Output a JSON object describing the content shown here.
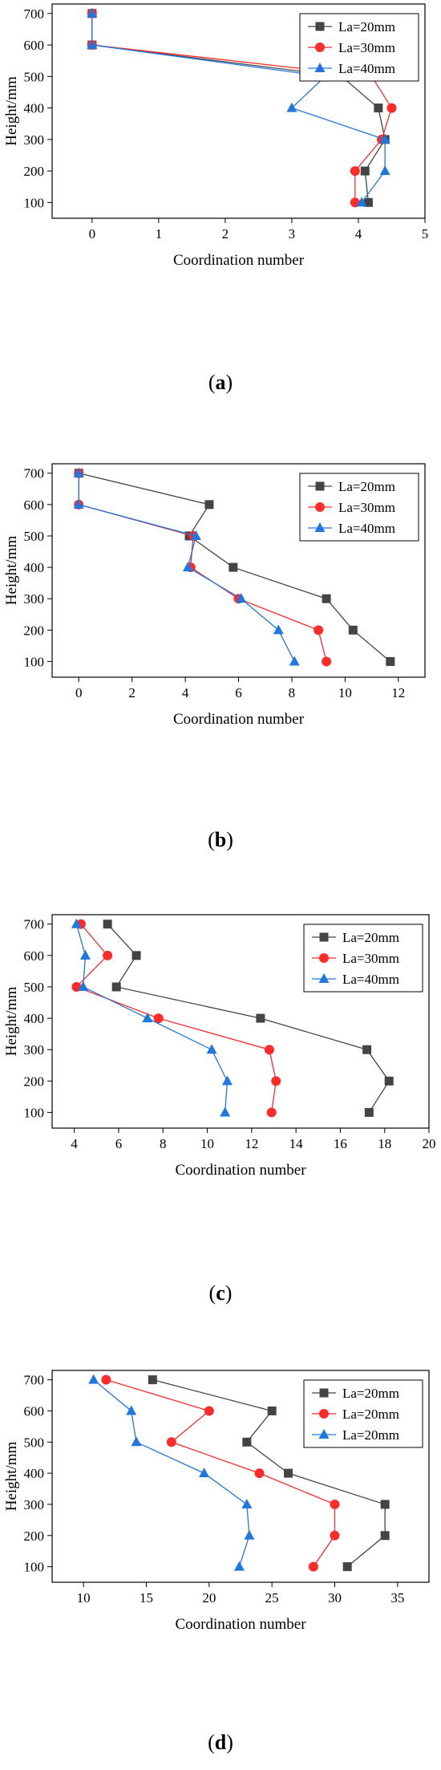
{
  "chart_data": [
    {
      "type": "line",
      "panel_label": "(a)",
      "xlabel": "Coordination number",
      "ylabel": "Height/mm",
      "xlim": [
        -0.6,
        5
      ],
      "ylim": [
        50,
        730
      ],
      "xticks": [
        0,
        1,
        2,
        3,
        4,
        5
      ],
      "yticks": [
        100,
        200,
        300,
        400,
        500,
        600,
        700
      ],
      "legend_position": "top-right",
      "grid": false,
      "series": [
        {
          "name": "La=20mm",
          "color": "#444444",
          "marker": "square",
          "x": [
            0,
            0,
            3.75,
            4.3,
            4.4,
            4.1,
            4.15
          ],
          "y": [
            700,
            600,
            500,
            400,
            300,
            200,
            100
          ]
        },
        {
          "name": "La=30mm",
          "color": "#ff2a2a",
          "marker": "circle",
          "x": [
            0,
            0,
            4.2,
            4.5,
            4.35,
            3.95,
            3.95
          ],
          "y": [
            700,
            600,
            500,
            400,
            300,
            200,
            100
          ]
        },
        {
          "name": "La=40mm",
          "color": "#1f77e0",
          "marker": "triangle",
          "x": [
            0,
            0,
            3.5,
            3.0,
            4.4,
            4.4,
            4.05
          ],
          "y": [
            700,
            600,
            500,
            400,
            300,
            200,
            100
          ]
        }
      ]
    },
    {
      "type": "line",
      "panel_label": "(b)",
      "xlabel": "Coordination number",
      "ylabel": "Height/mm",
      "xlim": [
        -1,
        13
      ],
      "ylim": [
        50,
        730
      ],
      "xticks": [
        0,
        2,
        4,
        6,
        8,
        10,
        12
      ],
      "yticks": [
        100,
        200,
        300,
        400,
        500,
        600,
        700
      ],
      "legend_position": "top-right",
      "grid": false,
      "series": [
        {
          "name": "La=20mm",
          "color": "#444444",
          "marker": "square",
          "x": [
            0,
            4.9,
            4.15,
            5.8,
            9.3,
            10.3,
            11.7
          ],
          "y": [
            700,
            600,
            500,
            400,
            300,
            200,
            100
          ]
        },
        {
          "name": "La=30mm",
          "color": "#ff2a2a",
          "marker": "circle",
          "x": [
            0,
            0,
            4.3,
            4.2,
            6.0,
            9.0,
            9.3
          ],
          "y": [
            700,
            600,
            500,
            400,
            300,
            200,
            100
          ]
        },
        {
          "name": "La=40mm",
          "color": "#1f77e0",
          "marker": "triangle",
          "x": [
            0,
            0,
            4.4,
            4.1,
            6.1,
            7.5,
            8.1
          ],
          "y": [
            700,
            600,
            500,
            400,
            300,
            200,
            100
          ]
        }
      ]
    },
    {
      "type": "line",
      "panel_label": "(c)",
      "xlabel": "Coordination number",
      "ylabel": "Height/mm",
      "xlim": [
        3,
        20
      ],
      "ylim": [
        50,
        730
      ],
      "xticks": [
        4,
        6,
        8,
        10,
        12,
        14,
        16,
        18,
        20
      ],
      "yticks": [
        100,
        200,
        300,
        400,
        500,
        600,
        700
      ],
      "legend_position": "top-right",
      "grid": false,
      "series": [
        {
          "name": "La=20mm",
          "color": "#444444",
          "marker": "square",
          "x": [
            5.5,
            6.8,
            5.9,
            12.4,
            17.2,
            18.2,
            17.3
          ],
          "y": [
            700,
            600,
            500,
            400,
            300,
            200,
            100
          ]
        },
        {
          "name": "La=30mm",
          "color": "#ff2a2a",
          "marker": "circle",
          "x": [
            4.3,
            5.5,
            4.1,
            7.8,
            12.8,
            13.1,
            12.9
          ],
          "y": [
            700,
            600,
            500,
            400,
            300,
            200,
            100
          ]
        },
        {
          "name": "La=40mm",
          "color": "#1f77e0",
          "marker": "triangle",
          "x": [
            4.1,
            4.5,
            4.4,
            7.3,
            10.2,
            10.9,
            10.8
          ],
          "y": [
            700,
            600,
            500,
            400,
            300,
            200,
            100
          ]
        }
      ]
    },
    {
      "type": "line",
      "panel_label": "(d)",
      "xlabel": "Coordination number",
      "ylabel": "Height/mm",
      "xlim": [
        7.5,
        37.5
      ],
      "ylim": [
        50,
        730
      ],
      "xticks": [
        10,
        15,
        20,
        25,
        30,
        35
      ],
      "yticks": [
        100,
        200,
        300,
        400,
        500,
        600,
        700
      ],
      "legend_position": "top-right",
      "grid": false,
      "series": [
        {
          "name": "La=20mm",
          "color": "#444444",
          "marker": "square",
          "x": [
            15.5,
            25.0,
            23.0,
            26.3,
            34.0,
            34.0,
            31.0
          ],
          "y": [
            700,
            600,
            500,
            400,
            300,
            200,
            100
          ]
        },
        {
          "name": "La=20mm",
          "color": "#ff2a2a",
          "marker": "circle",
          "x": [
            11.8,
            20.0,
            17.0,
            24.0,
            30.0,
            30.0,
            28.3
          ],
          "y": [
            700,
            600,
            500,
            400,
            300,
            200,
            100
          ]
        },
        {
          "name": "La=20mm",
          "color": "#1f77e0",
          "marker": "triangle",
          "x": [
            10.8,
            13.8,
            14.2,
            19.6,
            23.0,
            23.2,
            22.4
          ],
          "y": [
            700,
            600,
            500,
            400,
            300,
            200,
            100
          ]
        }
      ]
    }
  ]
}
